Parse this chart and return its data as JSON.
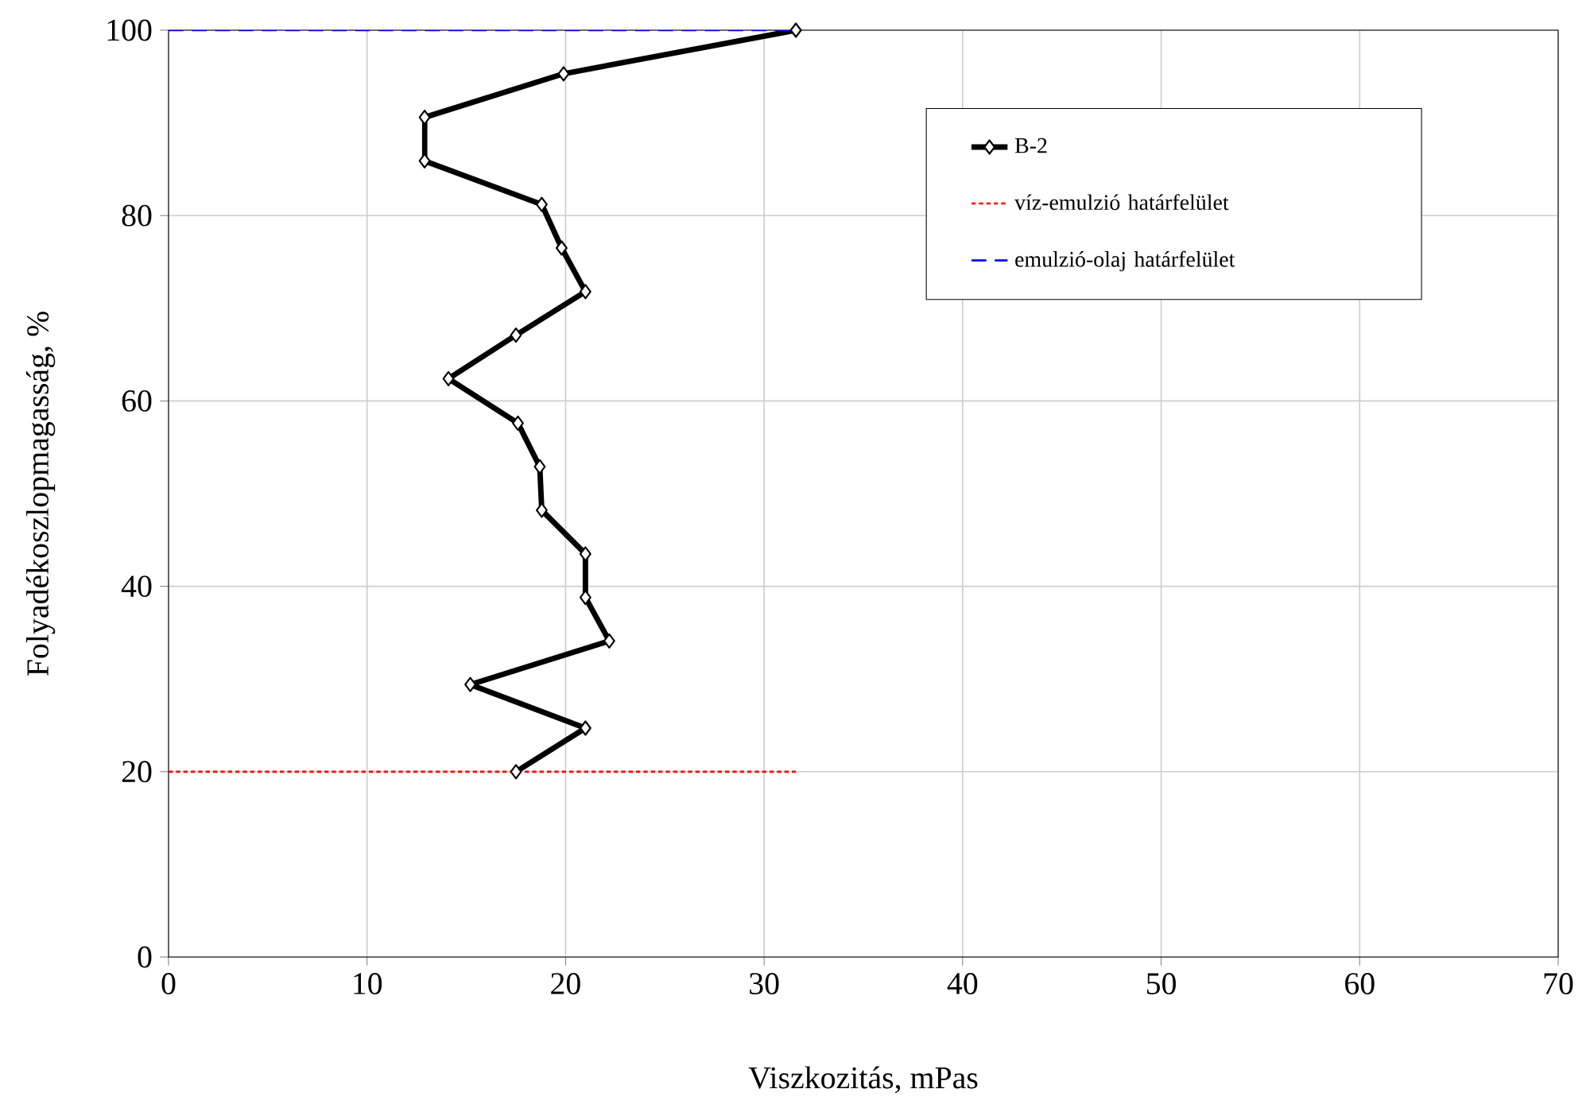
{
  "chart_data": {
    "type": "line",
    "xlabel": "Viszkozitás, mPas",
    "ylabel": "Folyadékoszlopmagasság, %",
    "xlim": [
      0,
      70
    ],
    "xticks": [
      0,
      10,
      20,
      30,
      40,
      50,
      60,
      70
    ],
    "ylim": [
      0,
      100
    ],
    "yticks": [
      0,
      20,
      40,
      60,
      80,
      100
    ],
    "grid": true,
    "legend": "top right",
    "series": [
      {
        "name": "B-2",
        "color": "#000000",
        "marker": "diamond",
        "line_style": "solid",
        "x": [
          31.6,
          19.9,
          12.9,
          12.9,
          18.8,
          19.8,
          21.0,
          17.5,
          14.1,
          17.6,
          18.7,
          18.8,
          21.0,
          21.0,
          22.2,
          15.2,
          21.0,
          17.5
        ],
        "values": [
          100,
          95.3,
          90.6,
          85.9,
          81.2,
          76.5,
          71.8,
          67.1,
          62.4,
          57.6,
          52.9,
          48.2,
          43.5,
          38.8,
          34.1,
          29.4,
          24.7,
          20
        ]
      },
      {
        "name": "víz-emulzió határfelület",
        "color": "#ff0000",
        "marker": "none",
        "line_style": "dotted",
        "x": [
          0,
          31.6
        ],
        "values": [
          20,
          20
        ]
      },
      {
        "name": "emulzió-olaj határfelület",
        "color": "#0000ff",
        "marker": "none",
        "line_style": "dashed",
        "x": [
          0,
          31.6
        ],
        "values": [
          100,
          100
        ]
      }
    ]
  }
}
